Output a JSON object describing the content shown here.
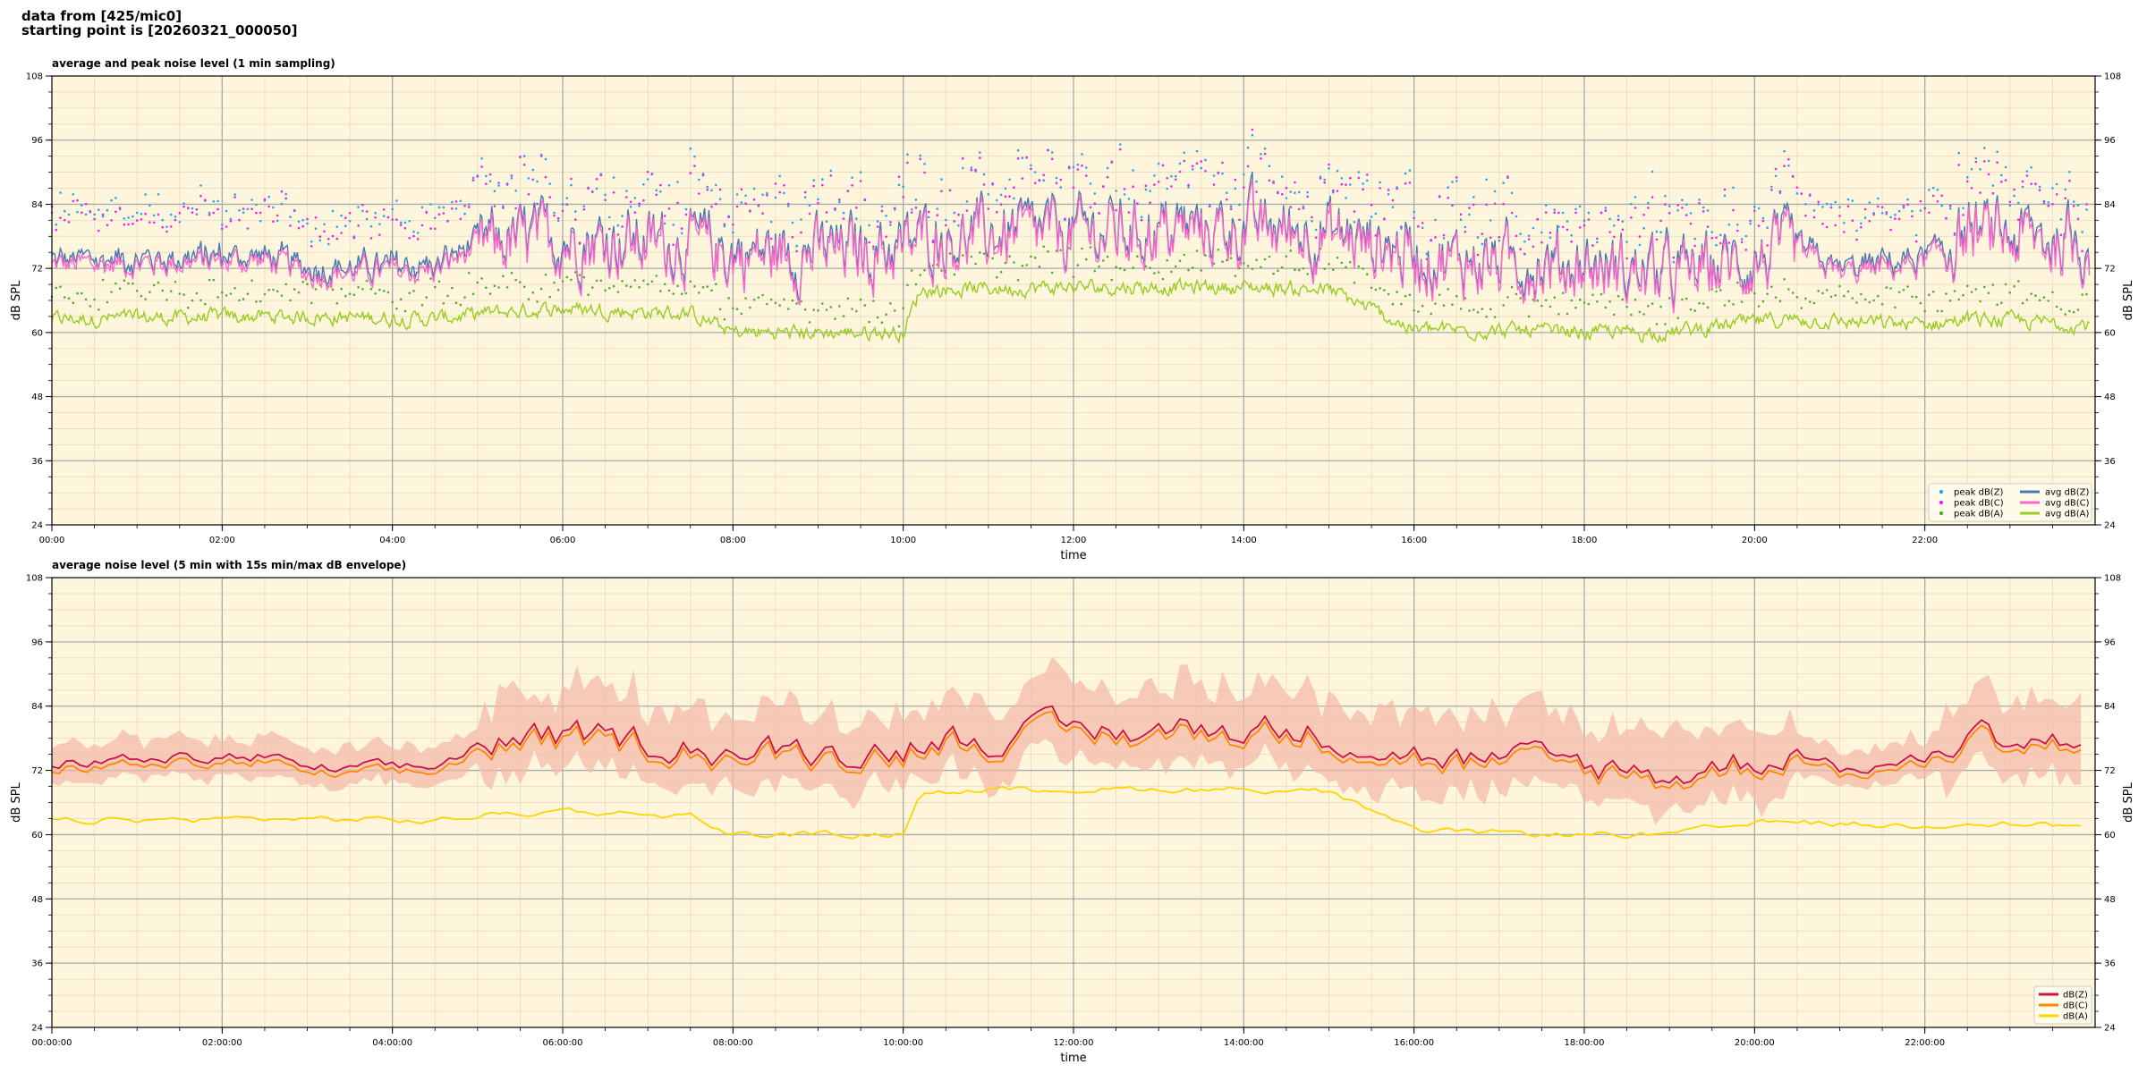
{
  "header": {
    "line1": "data from [425/mic0]",
    "line2": "starting point is [20260321_000050]"
  },
  "chart_data": [
    {
      "type": "line",
      "title": "average and peak noise level (1 min sampling)",
      "xlabel": "time",
      "ylabel": "dB SPL",
      "ylim": [
        24,
        108
      ],
      "yticks": [
        24,
        36,
        48,
        60,
        72,
        84,
        96,
        108
      ],
      "xlim_hours": [
        0,
        24
      ],
      "xticks": [
        "00:00",
        "02:00",
        "04:00",
        "06:00",
        "08:00",
        "10:00",
        "12:00",
        "14:00",
        "16:00",
        "18:00",
        "20:00",
        "22:00"
      ],
      "background": "#fdf6dc",
      "grid": true,
      "legend_position": "lower-right",
      "legend_columns": 2,
      "series": [
        {
          "name": "peak dB(Z)",
          "kind": "scatter",
          "color": "#2aa2ee",
          "offset": 9
        },
        {
          "name": "peak dB(C)",
          "kind": "scatter",
          "color": "#ee22ee",
          "offset": 8
        },
        {
          "name": "peak dB(A)",
          "kind": "scatter",
          "color": "#55aa33",
          "offset": 4
        },
        {
          "name": "avg dB(Z)",
          "kind": "line",
          "color": "#4a78b0",
          "offset": 1
        },
        {
          "name": "avg dB(C)",
          "kind": "line",
          "color": "#ff66cc",
          "offset": 0
        },
        {
          "name": "avg dB(A)",
          "kind": "line",
          "color": "#99cc22",
          "offset": 0
        }
      ],
      "profile_hours": [
        0,
        2.5,
        3.0,
        4.5,
        5.0,
        6.0,
        7.5,
        8.0,
        9.0,
        10.0,
        10.2,
        12.0,
        14.0,
        15.0,
        16.0,
        16.5,
        18.0,
        19.0,
        20.0,
        20.5,
        21.0,
        22.0,
        22.5,
        23.9
      ],
      "profile_avg_c": [
        72.5,
        73.5,
        71,
        71.5,
        76,
        77,
        76,
        74,
        74.5,
        75,
        77,
        78,
        79,
        78,
        74,
        73,
        72,
        70,
        73,
        75,
        71,
        73,
        78,
        76
      ],
      "profile_avg_a": [
        62.5,
        63,
        63,
        62.5,
        63.5,
        64.5,
        63.5,
        60,
        60,
        60,
        68,
        68.5,
        68.5,
        68,
        60.5,
        60.5,
        60,
        60,
        62,
        62.5,
        62,
        61.5,
        62.5,
        61.5
      ]
    },
    {
      "type": "line",
      "title": "average noise level (5 min with 15s min/max dB envelope)",
      "xlabel": "time",
      "ylabel": "dB SPL",
      "ylim": [
        24,
        108
      ],
      "yticks": [
        24,
        36,
        48,
        60,
        72,
        84,
        96,
        108
      ],
      "xlim_hours": [
        0,
        24
      ],
      "xticks": [
        "00:00:00",
        "02:00:00",
        "04:00:00",
        "06:00:00",
        "08:00:00",
        "10:00:00",
        "12:00:00",
        "14:00:00",
        "16:00:00",
        "18:00:00",
        "20:00:00",
        "22:00:00"
      ],
      "background": "#fdf6dc",
      "grid": true,
      "legend_position": "lower-right",
      "envelope_color": "#f4b8a8",
      "series": [
        {
          "name": "dB(Z)",
          "kind": "line",
          "color": "#cc1144",
          "offset": 1
        },
        {
          "name": "dB(C)",
          "kind": "line",
          "color": "#ff8800",
          "offset": 0
        },
        {
          "name": "dB(A)",
          "kind": "line",
          "color": "#ffd400",
          "offset": 0
        }
      ],
      "profile_hours": [
        0,
        2.5,
        3.0,
        4.5,
        5.0,
        6.0,
        7.5,
        8.0,
        9.0,
        10.0,
        10.2,
        12.0,
        14.0,
        15.0,
        16.0,
        16.5,
        18.0,
        19.0,
        20.0,
        20.5,
        21.0,
        22.0,
        22.5,
        23.9
      ],
      "profile_avg_c": [
        72.5,
        73.5,
        71,
        71.5,
        76,
        77,
        76,
        74,
        74.5,
        75,
        77,
        78,
        79,
        78,
        74,
        73,
        72,
        70,
        73,
        75,
        71,
        73,
        78,
        76
      ],
      "profile_avg_a": [
        62.5,
        63,
        63,
        62.5,
        63.5,
        64.5,
        63.5,
        60,
        60,
        60,
        68,
        68.5,
        68.5,
        68,
        60.5,
        60.5,
        60,
        60,
        62,
        62.5,
        62,
        61.5,
        62.5,
        61.5
      ]
    }
  ]
}
